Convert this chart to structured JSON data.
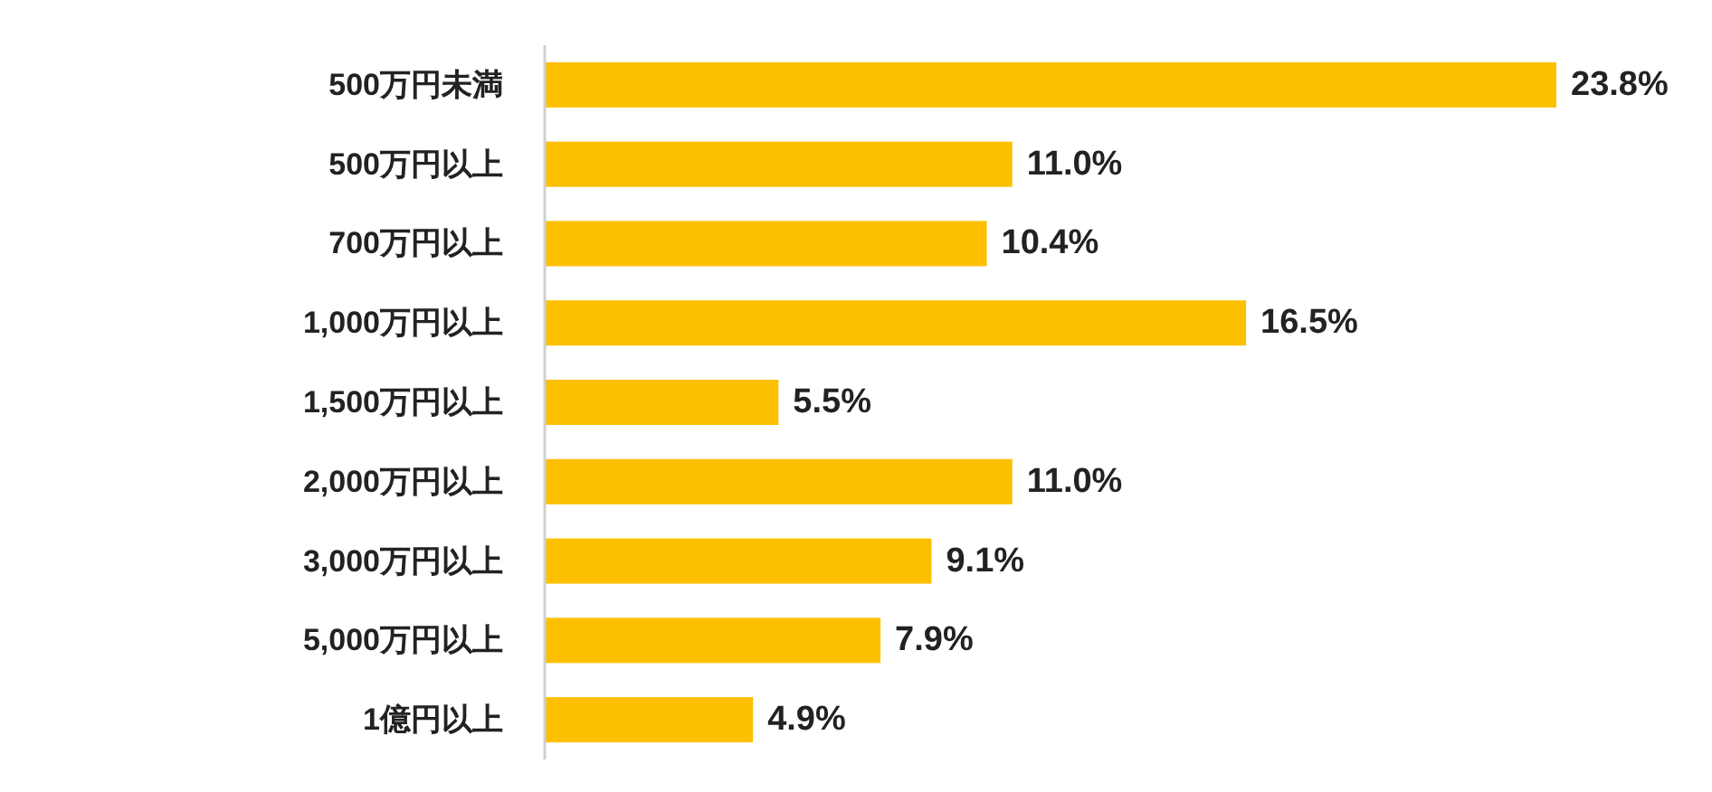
{
  "chart_data": {
    "type": "bar",
    "orientation": "horizontal",
    "categories": [
      "500万円未満",
      "500万円以上",
      "700万円以上",
      "1,000万円以上",
      "1,500万円以上",
      "2,000万円以上",
      "3,000万円以上",
      "5,000万円以上",
      "1億円以上"
    ],
    "values": [
      23.8,
      11.0,
      10.4,
      16.5,
      5.5,
      11.0,
      9.1,
      7.9,
      4.9
    ],
    "value_labels": [
      "23.8%",
      "11.0%",
      "10.4%",
      "16.5%",
      "5.5%",
      "11.0%",
      "9.1%",
      "7.9%",
      "4.9%"
    ],
    "color": "#fcc000"
  }
}
